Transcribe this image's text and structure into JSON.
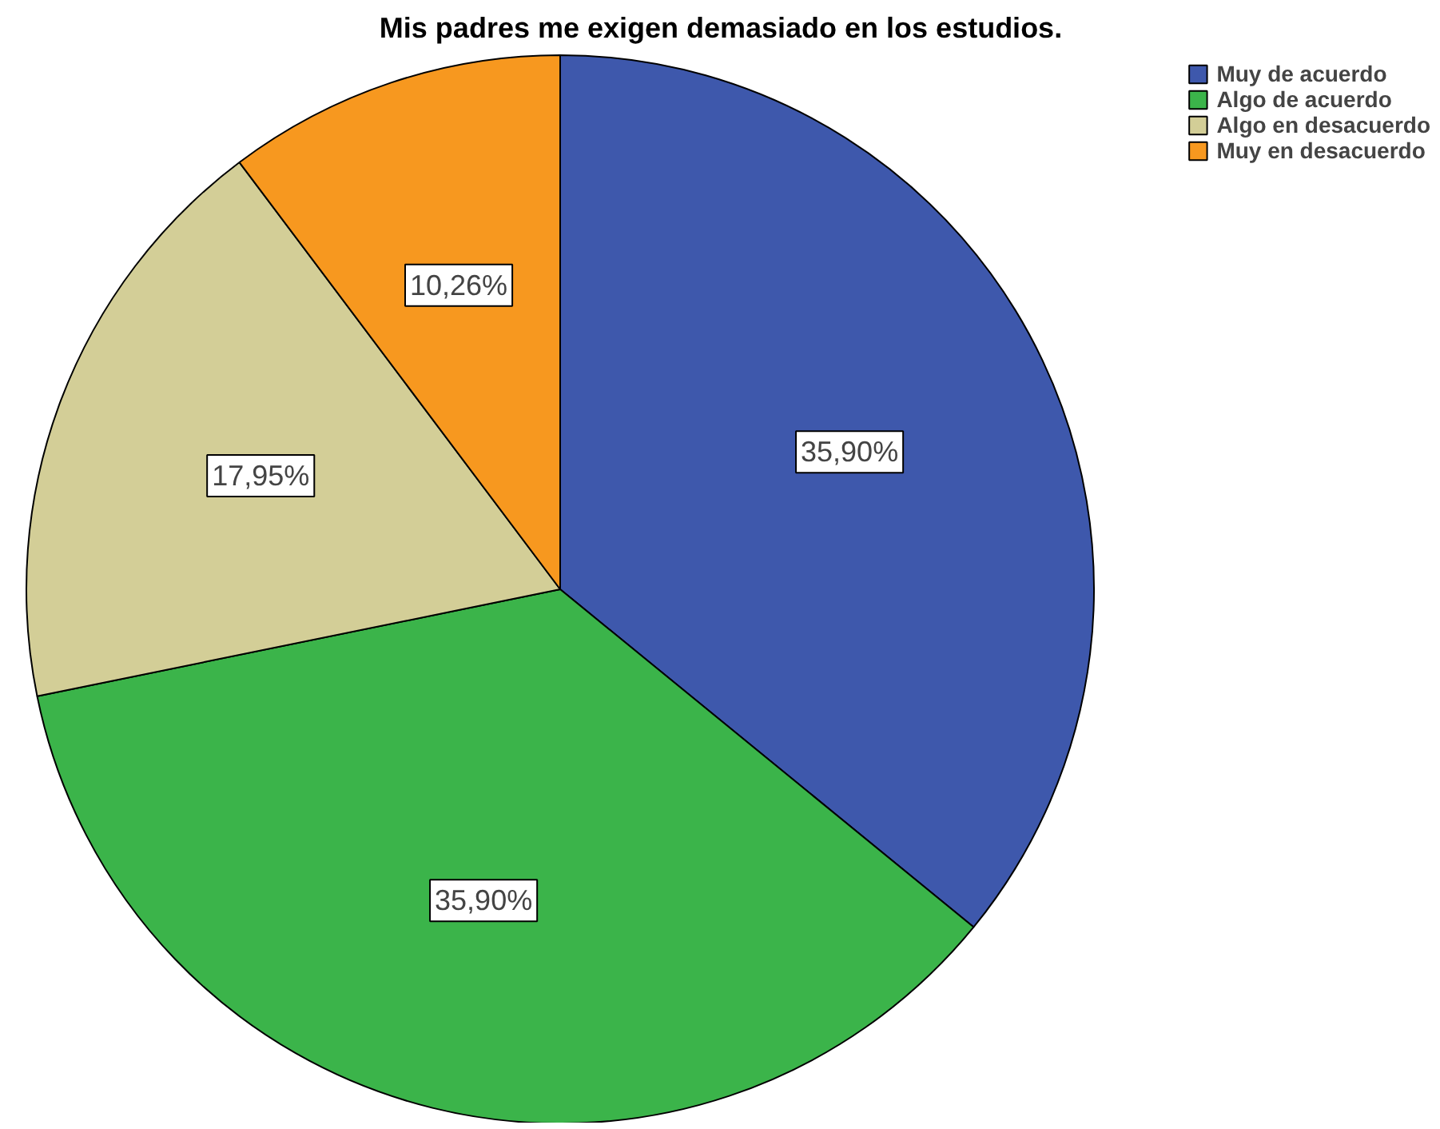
{
  "chart_data": {
    "type": "pie",
    "title": "Mis padres me exigen demasiado en los estudios.",
    "categories": [
      "Muy de acuerdo",
      "Algo de acuerdo",
      "Algo en desacuerdo",
      "Muy en desacuerdo"
    ],
    "values": [
      35.9,
      35.9,
      17.95,
      10.26
    ],
    "colors": [
      "#3e58ac",
      "#3bb44a",
      "#d3ce97",
      "#f7981f"
    ],
    "value_labels": [
      "35,90%",
      "35,90%",
      "17,95%",
      "10,26%"
    ],
    "legend": "top right"
  }
}
